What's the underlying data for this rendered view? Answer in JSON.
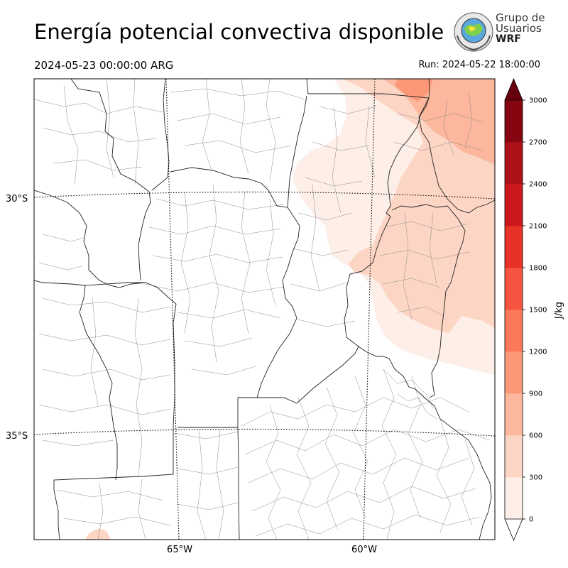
{
  "header": {
    "title": "Energía potencial convectiva disponible",
    "valid_time": "2024-05-23 00:00:00 ARG",
    "run_time": "Run: 2024-05-22 18:00:00"
  },
  "logo": {
    "line1": "Grupo de",
    "line2": "Usuarios",
    "line3": "WRF"
  },
  "map": {
    "lat_labels": [
      "30°S",
      "35°S"
    ],
    "lon_labels": [
      "65°W",
      "60°W"
    ]
  },
  "colorbar": {
    "units": "J/kg",
    "ticks": [
      "0",
      "300",
      "600",
      "900",
      "1200",
      "1500",
      "1800",
      "2100",
      "2400",
      "2700",
      "3000"
    ],
    "colors": [
      "#fdeee8",
      "#fdd5c5",
      "#fcb79c",
      "#fc9877",
      "#fb7858",
      "#f55440",
      "#e73227",
      "#cb181d",
      "#ad1218",
      "#850510"
    ],
    "over_color": "#67000d",
    "under_color": "#ffffff"
  }
}
